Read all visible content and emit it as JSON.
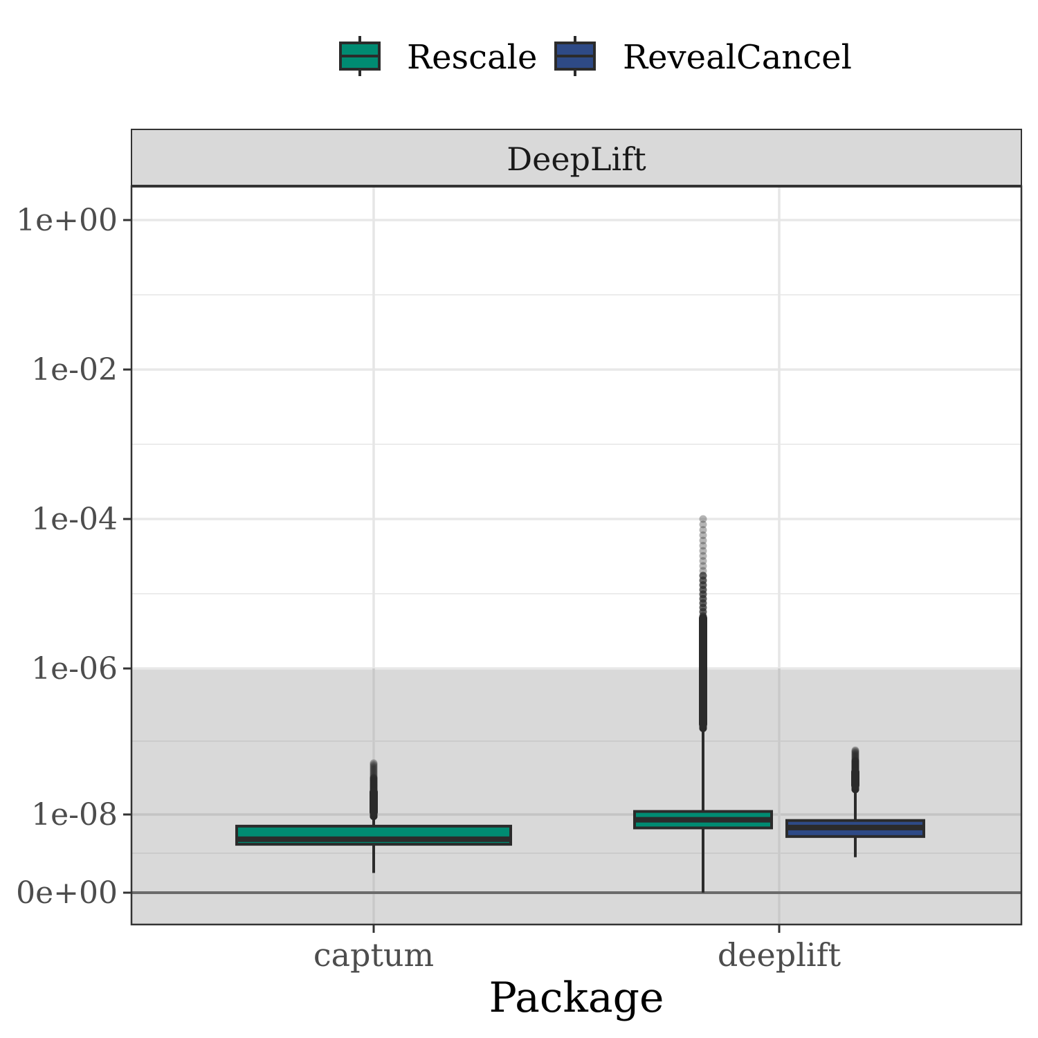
{
  "chart_data": {
    "type": "boxplot",
    "facet_label": "DeepLift",
    "xlabel": "Package",
    "ylabel": "",
    "y_scale": "pseudo-log",
    "y_ticks": [
      {
        "value": 0,
        "label": "0e+00"
      },
      {
        "value": 1e-08,
        "label": "1e-08"
      },
      {
        "value": 1e-06,
        "label": "1e-06"
      },
      {
        "value": 0.0001,
        "label": "1e-04"
      },
      {
        "value": 0.01,
        "label": "1e-02"
      },
      {
        "value": 1,
        "label": "1e+00"
      }
    ],
    "grid": true,
    "legend_position": "top",
    "shaded_region": {
      "from": 0,
      "to": 1e-06,
      "color": "#d9d9d9"
    },
    "categories": [
      "captum",
      "deeplift"
    ],
    "series": [
      {
        "name": "Rescale",
        "color": "#008b72",
        "boxes": [
          {
            "category": "captum",
            "whisker_low": 5e-10,
            "q1": 1.7e-09,
            "median": 2.3e-09,
            "q3": 5e-09,
            "whisker_high": 9e-09,
            "outlier_range": [
              9e-09,
              5e-08
            ]
          },
          {
            "category": "deeplift",
            "whisker_low": 0,
            "q1": 4.5e-09,
            "median": 7.3e-09,
            "q3": 1.1e-08,
            "whisker_high": 1.5e-07,
            "outlier_range": [
              1.5e-07,
              0.0001
            ]
          }
        ]
      },
      {
        "name": "RevealCancel",
        "color": "#2e4a86",
        "boxes": [
          {
            "category": "deeplift",
            "whisker_low": 9e-10,
            "q1": 2.7e-09,
            "median": 4.6e-09,
            "q3": 7e-09,
            "whisker_high": 2.2e-08,
            "outlier_range": [
              2.2e-08,
              7.5e-08
            ]
          }
        ]
      }
    ]
  }
}
